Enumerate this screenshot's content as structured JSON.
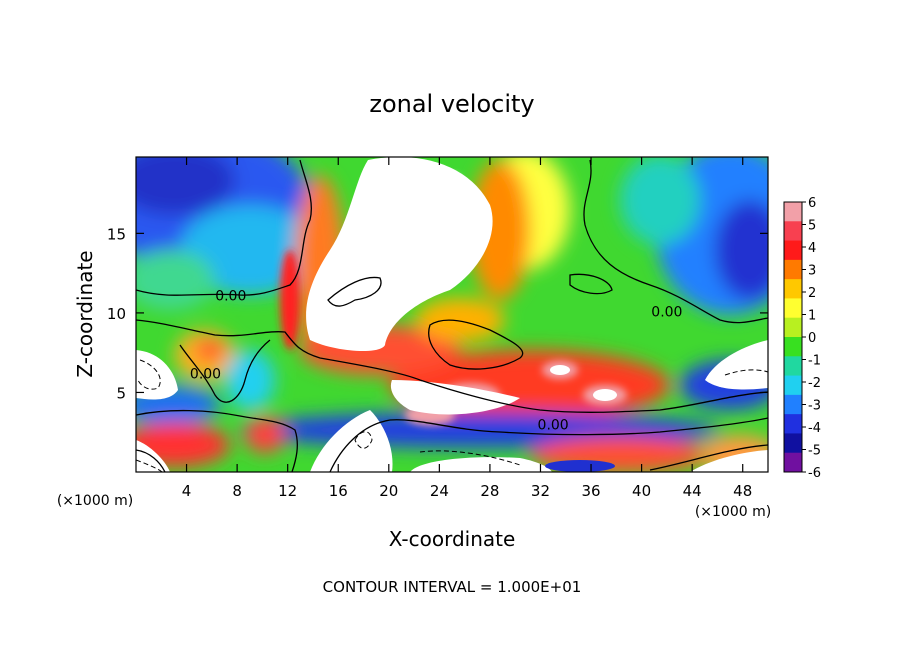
{
  "chart_data": {
    "type": "heatmap",
    "title": "zonal velocity",
    "xlabel": "X-coordinate",
    "ylabel": "Z-coordinate",
    "x_unit": "(×1000 m)",
    "x_unit_right": "(×1000 m)",
    "xlim": [
      0,
      50
    ],
    "ylim": [
      0,
      19.8
    ],
    "x_ticks": [
      4,
      8,
      12,
      16,
      20,
      24,
      28,
      32,
      36,
      40,
      44,
      48
    ],
    "y_ticks": [
      5,
      10,
      15
    ],
    "colorbar": {
      "ticks": [
        6,
        5,
        4,
        3,
        2,
        1,
        0,
        -1,
        -2,
        -3,
        -4,
        -5,
        -6
      ],
      "colors": [
        "#f2a0a8",
        "#f84050",
        "#ff1a1a",
        "#ff7a00",
        "#ffc800",
        "#ffff30",
        "#b8f020",
        "#38e020",
        "#20d8a0",
        "#20d0f0",
        "#2080ff",
        "#2030e0",
        "#1010a0",
        "#7010a0"
      ]
    },
    "contour_labels": [
      {
        "text": "0.00",
        "x": 7.5,
        "z": 11.1
      },
      {
        "text": "0.00",
        "x": 5.5,
        "z": 6.2
      },
      {
        "text": "0.00",
        "x": 42.0,
        "z": 10.1
      },
      {
        "text": "0.00",
        "x": 33.0,
        "z": 3.0
      }
    ],
    "footer": "CONTOUR INTERVAL = 1.000E+01"
  }
}
